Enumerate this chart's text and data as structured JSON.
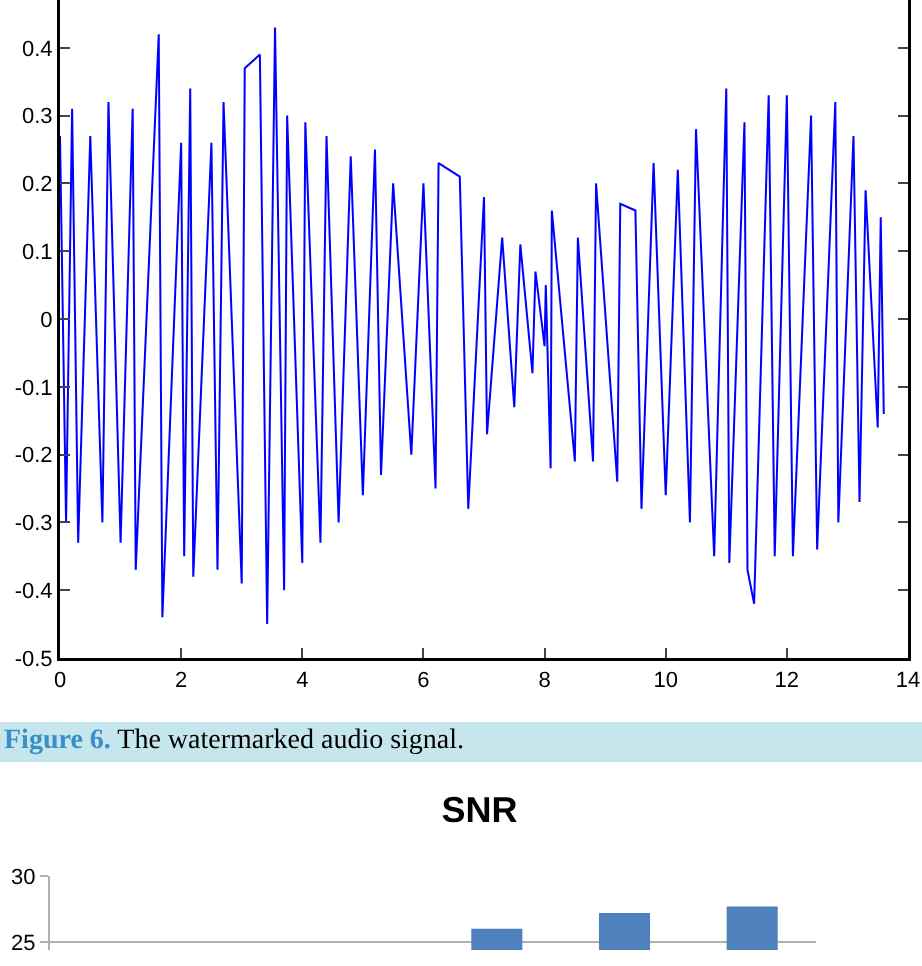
{
  "chart_data": [
    {
      "type": "line",
      "xlim": [
        0,
        14
      ],
      "ylim": [
        -0.5,
        0.5
      ],
      "xticks": [
        0,
        2,
        4,
        6,
        8,
        10,
        12,
        14
      ],
      "yticks": [
        -0.5,
        -0.4,
        -0.3,
        -0.2,
        -0.1,
        0,
        0.1,
        0.2,
        0.3,
        0.4
      ],
      "marker": "none",
      "line_style": "solid",
      "annotations": [
        "Figure 6. The watermarked audio signal."
      ],
      "series": [
        {
          "color": "#0000ff",
          "x": [
            0,
            0.1,
            0.2,
            0.3,
            0.5,
            0.7,
            0.8,
            1.0,
            1.2,
            1.25,
            1.63,
            1.69,
            2.0,
            2.05,
            2.15,
            2.2,
            2.5,
            2.6,
            2.7,
            3.0,
            3.05,
            3.3,
            3.42,
            3.55,
            3.7,
            3.75,
            4.0,
            4.05,
            4.3,
            4.4,
            4.6,
            4.8,
            5.0,
            5.2,
            5.3,
            5.5,
            5.8,
            6.0,
            6.2,
            6.25,
            6.6,
            6.74,
            7.0,
            7.05,
            7.3,
            7.5,
            7.6,
            7.8,
            7.85,
            8.0,
            8.02,
            8.1,
            8.12,
            8.5,
            8.55,
            8.8,
            8.85,
            9.2,
            9.25,
            9.5,
            9.6,
            9.8,
            10.0,
            10.2,
            10.4,
            10.5,
            10.8,
            11.0,
            11.05,
            11.3,
            11.35,
            11.46,
            11.7,
            11.8,
            12.0,
            12.1,
            12.4,
            12.5,
            12.8,
            12.85,
            13.1,
            13.2,
            13.3,
            13.5,
            13.55,
            13.6
          ],
          "values": [
            0.27,
            -0.3,
            0.31,
            -0.33,
            0.27,
            -0.3,
            0.32,
            -0.33,
            0.31,
            -0.37,
            0.42,
            -0.44,
            0.26,
            -0.35,
            0.34,
            -0.38,
            0.26,
            -0.37,
            0.32,
            -0.39,
            0.37,
            0.39,
            -0.45,
            0.43,
            -0.4,
            0.3,
            -0.36,
            0.29,
            -0.33,
            0.27,
            -0.3,
            0.24,
            -0.26,
            0.25,
            -0.23,
            0.2,
            -0.2,
            0.2,
            -0.25,
            0.23,
            0.21,
            -0.28,
            0.18,
            -0.17,
            0.12,
            -0.13,
            0.11,
            -0.08,
            0.07,
            -0.04,
            0.05,
            -0.22,
            0.16,
            -0.21,
            0.12,
            -0.21,
            0.2,
            -0.24,
            0.17,
            0.16,
            -0.28,
            0.23,
            -0.26,
            0.22,
            -0.3,
            0.28,
            -0.35,
            0.34,
            -0.36,
            0.29,
            -0.37,
            -0.42,
            0.33,
            -0.35,
            0.33,
            -0.35,
            0.3,
            -0.34,
            0.32,
            -0.3,
            0.27,
            -0.27,
            0.19,
            -0.16,
            0.15,
            -0.14
          ]
        }
      ]
    },
    {
      "type": "bar",
      "title": "SNR",
      "categories": [
        null,
        null,
        null,
        null,
        null,
        null
      ],
      "values": [
        null,
        null,
        null,
        26,
        27.2,
        27.7
      ],
      "color": "#4f81bd",
      "ylim": [
        24.4,
        30
      ],
      "yticks": [
        25,
        30
      ],
      "grid": "y"
    }
  ]
}
